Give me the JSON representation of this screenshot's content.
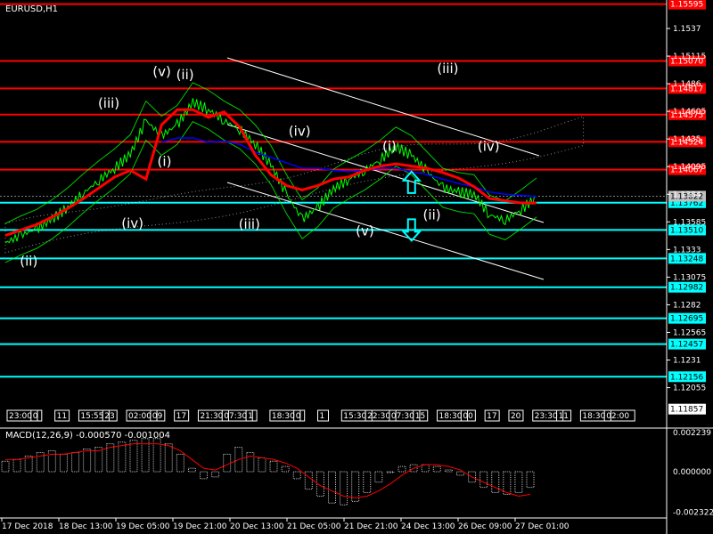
{
  "symbol": "EURUSD,H1",
  "macd_label": "MACD(12,26,9) -0.000570 -0.001004",
  "colors": {
    "background": "#000000",
    "price": "#00ff00",
    "red_level": "#ff0000",
    "cyan_level": "#00ffff",
    "ma_red": "#ff0000",
    "ma_blue": "#0000ff",
    "channel": "#ffffff",
    "cloud": "#ffffff",
    "histogram": "#c0c0c0",
    "signal": "#ff0000"
  },
  "chart_data": [
    {
      "type": "line",
      "title": "EURUSD,H1",
      "x_ticks": [
        "17 Dec 2018",
        "18 Dec 13:00",
        "19 Dec 05:00",
        "19 Dec 21:00",
        "20 Dec 13:00",
        "21 Dec 05:00",
        "21 Dec 21:00",
        "24 Dec 13:00",
        "26 Dec 09:00",
        "27 Dec 01:00"
      ],
      "y_ticks": [
        1.1537,
        1.15115,
        1.1486,
        1.14605,
        1.1435,
        1.14095,
        1.1384,
        1.13585,
        1.1333,
        1.13075,
        1.1282,
        1.12565,
        1.1231,
        1.12055
      ],
      "ylim": [
        1.1169,
        1.156
      ],
      "grid": false,
      "red_levels": [
        1.15595,
        1.1507,
        1.14817,
        1.14575,
        1.14324,
        1.14067
      ],
      "cyan_levels": [
        1.13762,
        1.1351,
        1.13248,
        1.12982,
        1.12695,
        1.12457,
        1.12156
      ],
      "current_price": 1.13822,
      "last_price_tag": 1.11857,
      "series": [
        {
          "name": "price",
          "values": [
            1.1339,
            1.1346,
            1.1352,
            1.1361,
            1.1372,
            1.1385,
            1.1397,
            1.1408,
            1.1421,
            1.1452,
            1.1438,
            1.1448,
            1.1469,
            1.1462,
            1.1452,
            1.1444,
            1.143,
            1.1411,
            1.1384,
            1.1361,
            1.1372,
            1.1389,
            1.1398,
            1.1406,
            1.1416,
            1.1428,
            1.142,
            1.1405,
            1.139,
            1.1386,
            1.1384,
            1.1365,
            1.136,
            1.137,
            1.1381
          ]
        },
        {
          "name": "ma-red",
          "values": [
            1.1346,
            1.1351,
            1.1356,
            1.1363,
            1.1371,
            1.138,
            1.139,
            1.14,
            1.1406,
            1.1398,
            1.1448,
            1.1462,
            1.1462,
            1.1455,
            1.146,
            1.1446,
            1.142,
            1.1402,
            1.1392,
            1.1388,
            1.1392,
            1.1398,
            1.14,
            1.1406,
            1.141,
            1.1412,
            1.141,
            1.1408,
            1.1404,
            1.1399,
            1.1391,
            1.138,
            1.1378,
            1.1376,
            1.1376
          ]
        },
        {
          "name": "ma-blue",
          "values": [
            null,
            null,
            null,
            null,
            null,
            null,
            null,
            null,
            null,
            null,
            1.1432,
            1.1436,
            1.1436,
            1.1432,
            1.1433,
            1.143,
            1.1423,
            1.1418,
            1.1413,
            1.1408,
            1.1408,
            1.1406,
            1.1405,
            1.1406,
            1.1408,
            1.1408,
            1.1405,
            1.1402,
            1.1398,
            1.1394,
            1.1391,
            1.1386,
            1.1384,
            1.1383,
            1.1382
          ]
        }
      ],
      "wave_labels": [
        {
          "text": "(v)",
          "x_index": 10,
          "y": 1.1493
        },
        {
          "text": "(ii)",
          "x_index": 11.5,
          "y": 1.149
        },
        {
          "text": "(iii)",
          "x_index": 6.5,
          "y": 1.1464
        },
        {
          "text": "(i)",
          "x_index": 10.3,
          "y": 1.141
        },
        {
          "text": "(iv)",
          "x_index": 8,
          "y": 1.1353
        },
        {
          "text": "(ii)",
          "x_index": 1.5,
          "y": 1.1318
        },
        {
          "text": "(iii)",
          "x_index": 15.5,
          "y": 1.1352
        },
        {
          "text": "(iv)",
          "x_index": 18.7,
          "y": 1.1438
        },
        {
          "text": "(v)",
          "x_index": 23,
          "y": 1.1346
        },
        {
          "text": "(i)",
          "x_index": 24.7,
          "y": 1.1424
        },
        {
          "text": "(ii)",
          "x_index": 27.3,
          "y": 1.1361
        },
        {
          "text": "(iii)",
          "x_index": 28.2,
          "y": 1.1496
        },
        {
          "text": "(iv)",
          "x_index": 30.8,
          "y": 1.1424
        }
      ],
      "arrows": [
        {
          "direction": "up",
          "x_index": 26,
          "y": 1.1395
        },
        {
          "direction": "down",
          "x_index": 26,
          "y": 1.1351
        }
      ],
      "time_labels": [
        "23:00",
        "0",
        "11",
        "15:55",
        "23",
        "02:00",
        "09",
        "17",
        "21:30",
        "07:30",
        "1",
        "18:30",
        "0",
        "1",
        "15:30",
        "22:30",
        "07:30",
        "15",
        "18:30",
        "00",
        "17",
        "20",
        "23:30",
        "11",
        "18:30",
        "02:00"
      ]
    },
    {
      "type": "bar",
      "title": "MACD(12,26,9) -0.000570 -0.001004",
      "y_ticks": [
        0.002239,
        0.0,
        -0.002322
      ],
      "ylim": [
        -0.00255,
        0.00245
      ],
      "series": [
        {
          "name": "histogram",
          "values": [
            0.0006,
            0.0007,
            0.0009,
            0.0011,
            0.0012,
            0.001,
            0.0011,
            0.0013,
            0.0014,
            0.0016,
            0.0017,
            0.0018,
            0.0019,
            0.0019,
            0.0016,
            0.001,
            0.0002,
            -0.0004,
            -0.0003,
            0.001,
            0.0014,
            0.0011,
            0.0008,
            0.0006,
            0.0003,
            -0.0004,
            -0.001,
            -0.0014,
            -0.0018,
            -0.0019,
            -0.0017,
            -0.0012,
            -0.0006,
            0.0,
            0.0003,
            0.0004,
            0.0004,
            0.0003,
            0.0001,
            -0.0002,
            -0.0006,
            -0.0009,
            -0.0012,
            -0.0013,
            -0.0012,
            -0.0009
          ]
        },
        {
          "name": "signal",
          "values": [
            0.0007,
            0.0007,
            0.0008,
            0.0009,
            0.001,
            0.001,
            0.0011,
            0.0012,
            0.0012,
            0.0014,
            0.0015,
            0.0016,
            0.0016,
            0.0016,
            0.0015,
            0.0012,
            0.0007,
            0.0002,
            0.0001,
            0.0004,
            0.0007,
            0.0009,
            0.0008,
            0.0007,
            0.0005,
            0.0002,
            -0.0003,
            -0.0008,
            -0.0011,
            -0.0014,
            -0.0015,
            -0.0014,
            -0.0011,
            -0.0007,
            -0.0002,
            0.0002,
            0.0004,
            0.0004,
            0.0003,
            0.0001,
            -0.0003,
            -0.0006,
            -0.0009,
            -0.0012,
            -0.0014,
            -0.0013
          ]
        }
      ]
    }
  ]
}
